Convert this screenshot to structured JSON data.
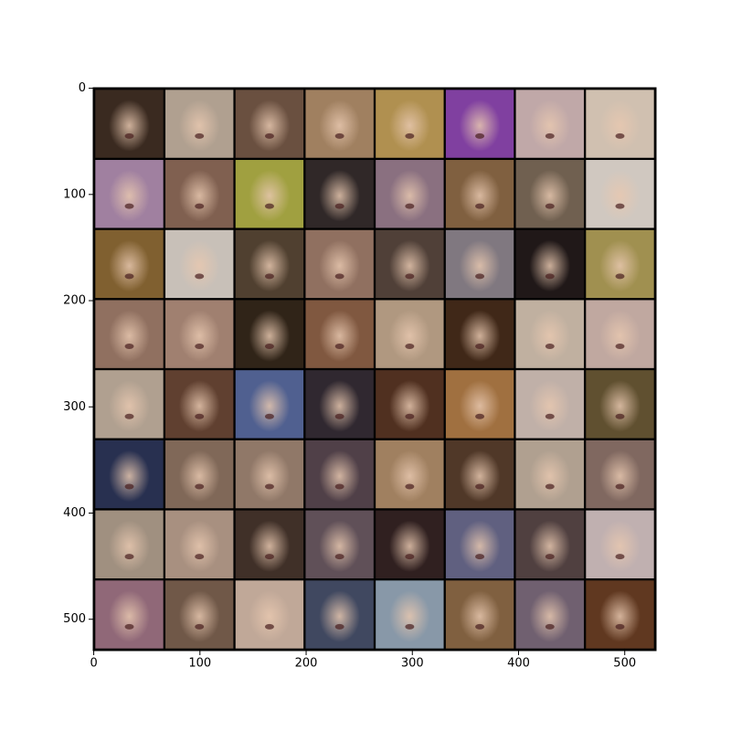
{
  "chart_data": {
    "type": "image",
    "xlim": [
      -0.5,
      529.5
    ],
    "ylim": [
      529.5,
      -0.5
    ],
    "xticks": [
      0,
      100,
      200,
      300,
      400,
      500
    ],
    "yticks": [
      0,
      100,
      200,
      300,
      400,
      500
    ],
    "tiles": [
      "#3a2a20",
      "#b0a090",
      "#6a5040",
      "#a08060",
      "#b09050",
      "#8040a0",
      "#c0a8a8",
      "#d0c0b0",
      "#a080a0",
      "#806050",
      "#a0a040",
      "#302828",
      "#8a7080",
      "#806040",
      "#706050",
      "#d0c8c0",
      "#806030",
      "#c8c0b8",
      "#504030",
      "#907060",
      "#504038",
      "#807880",
      "#201818",
      "#a09050",
      "#907060",
      "#a08070",
      "#302418",
      "#805840",
      "#b09880",
      "#402818",
      "#c0b0a0",
      "#c0a8a0",
      "#b0a090",
      "#604030",
      "#506090",
      "#302830",
      "#503020",
      "#a07040",
      "#c0b0a8",
      "#605030",
      "#283050",
      "#806858",
      "#907868",
      "#504048",
      "#a08060",
      "#503828",
      "#b0a090",
      "#806860",
      "#a09080",
      "#a89080",
      "#403028",
      "#605058",
      "#302020",
      "#606080",
      "#504040",
      "#c0b0b0",
      "#906878",
      "#705848",
      "#c0a898",
      "#404860",
      "#8898a8",
      "#806040",
      "#706070",
      "#603820"
    ]
  }
}
